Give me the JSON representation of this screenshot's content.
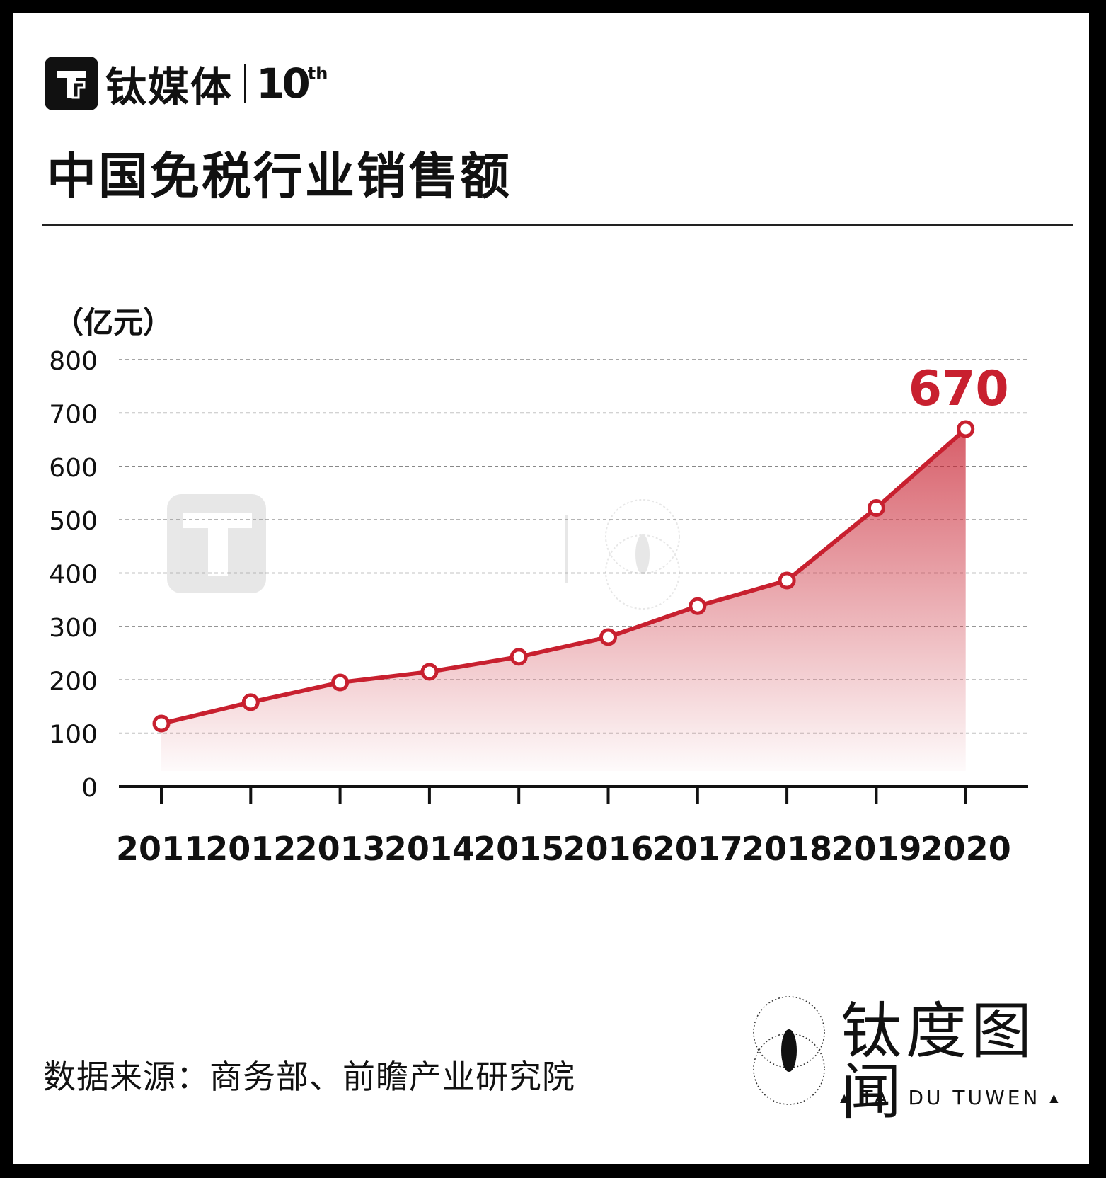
{
  "brand": {
    "name": "钛媒体",
    "anniversary_number": "10",
    "anniversary_suffix": "th"
  },
  "title": "中国免税行业销售额",
  "unit_label": "（亿元）",
  "source": "数据来源：商务部、前瞻产业研究院",
  "footer_logo": {
    "name": "钛度图闻",
    "subtitle": "TAI DU TUWEN"
  },
  "colors": {
    "line": "#c8202f",
    "area": "#c8202f",
    "highlight_label": "#c8202f",
    "axis": "#111111",
    "grid": "#888888"
  },
  "chart_data": {
    "type": "area",
    "title": "中国免税行业销售额",
    "ylabel": "（亿元）",
    "xlabel": "",
    "ylim": [
      0,
      800
    ],
    "yticks": [
      0,
      100,
      200,
      300,
      400,
      500,
      600,
      700,
      800
    ],
    "grid": true,
    "categories": [
      "2011",
      "2012",
      "2013",
      "2014",
      "2015",
      "2016",
      "2017",
      "2018",
      "2019",
      "2020"
    ],
    "series": [
      {
        "values": [
          118,
          158,
          195,
          215,
          243,
          280,
          338,
          386,
          522,
          670
        ]
      }
    ],
    "annotations": [
      {
        "category": "2020",
        "text": "670"
      }
    ]
  }
}
